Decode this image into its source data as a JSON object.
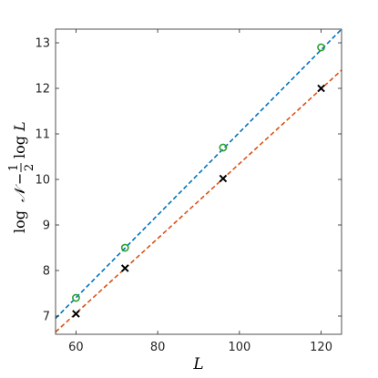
{
  "chart_data": {
    "type": "scatter",
    "title": "",
    "xlabel": "L",
    "ylabel": {
      "log1": "log",
      "sym_n": "𝒩",
      "minus": "−",
      "frac_num": "1",
      "frac_den": "2",
      "log2": "log",
      "var_l": "L"
    },
    "xlim": [
      55,
      125
    ],
    "ylim": [
      6.6,
      13.3
    ],
    "xticks": [
      60,
      80,
      100,
      120
    ],
    "yticks": [
      7,
      8,
      9,
      10,
      11,
      12,
      13
    ],
    "grid": false,
    "colors": {
      "blue_line": "#0072BD",
      "orange_line": "#D95319",
      "circle_marker": "#2CA02C",
      "cross_marker": "#000000",
      "axis": "#262626"
    },
    "series": [
      {
        "marker": "circle",
        "points": [
          [
            60,
            7.4
          ],
          [
            72,
            8.5
          ],
          [
            96,
            10.7
          ],
          [
            120,
            12.9
          ]
        ]
      },
      {
        "marker": "cross",
        "points": [
          [
            60,
            7.05
          ],
          [
            72,
            8.05
          ],
          [
            96,
            10.02
          ],
          [
            120,
            12.0
          ]
        ]
      }
    ],
    "fit_lines": [
      {
        "style": "dashed",
        "color_key": "blue_line",
        "x": [
          55,
          125
        ],
        "y": [
          6.95,
          13.3
        ]
      },
      {
        "style": "dashed",
        "color_key": "orange_line",
        "x": [
          55,
          125
        ],
        "y": [
          6.65,
          12.4
        ]
      }
    ]
  }
}
